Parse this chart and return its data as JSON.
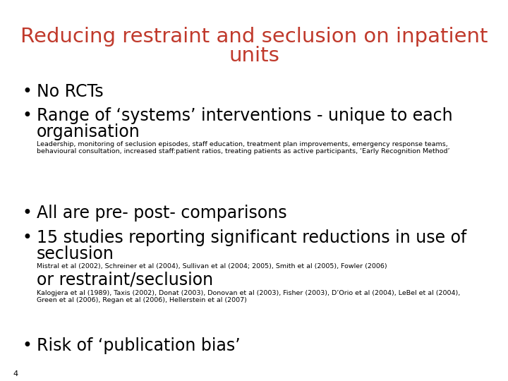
{
  "title_line1": "Reducing restraint and seclusion on inpatient",
  "title_line2": "units",
  "title_color": "#C0392B",
  "bg_color": "#FFFFFF",
  "slide_number": "4",
  "title_fontsize": 21,
  "bullet_fontsize": 17,
  "small_fontsize": 6.8,
  "sub_heading_fontsize": 17,
  "bullet_char": "•"
}
